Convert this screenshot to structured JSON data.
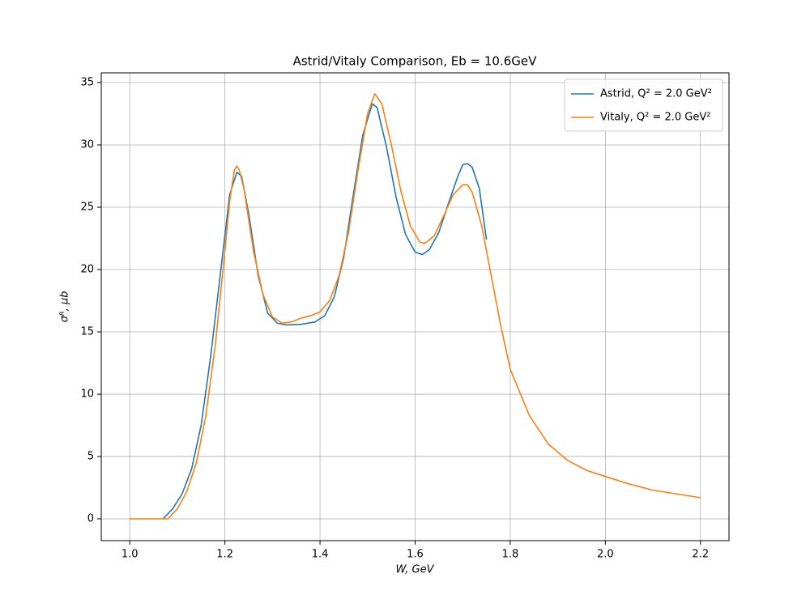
{
  "chart_data": {
    "type": "line",
    "title": "Astrid/Vitaly Comparison, Eb = 10.6GeV",
    "x_label": "W, GeV",
    "y_label": "σᴿ, μb",
    "xlim": [
      0.94,
      2.26
    ],
    "ylim": [
      -1.75,
      35.78
    ],
    "xticks": [
      {
        "value": 1.0,
        "label": "1.0"
      },
      1.2,
      1.4,
      1.6,
      1.8,
      {
        "value": 2.0,
        "label": "2.0"
      },
      2.2
    ],
    "yticks": [
      0,
      5,
      10,
      15,
      20,
      25,
      30,
      35
    ],
    "grid": true,
    "legend": "upper right",
    "series": [
      {
        "name": "Astrid, Q² = 2.0 GeV²",
        "color": "#1f77b4",
        "x": [
          1.07,
          1.09,
          1.11,
          1.13,
          1.15,
          1.17,
          1.19,
          1.21,
          1.225,
          1.235,
          1.25,
          1.27,
          1.29,
          1.31,
          1.33,
          1.36,
          1.39,
          1.41,
          1.43,
          1.45,
          1.47,
          1.49,
          1.51,
          1.52,
          1.54,
          1.56,
          1.58,
          1.6,
          1.615,
          1.63,
          1.65,
          1.67,
          1.69,
          1.7,
          1.71,
          1.72,
          1.735,
          1.75
        ],
        "values": [
          0,
          0.8,
          2.0,
          4.0,
          7.5,
          13,
          19.5,
          26,
          27.8,
          27.5,
          24.5,
          19.5,
          16.5,
          15.7,
          15.55,
          15.6,
          15.8,
          16.3,
          17.8,
          21.0,
          26.0,
          30.8,
          33.3,
          33.0,
          29.8,
          25.8,
          22.8,
          21.4,
          21.2,
          21.6,
          23.0,
          25.3,
          27.5,
          28.4,
          28.5,
          28.2,
          26.5,
          22.4
        ]
      },
      {
        "name": "Vitaly, Q² = 2.0 GeV²",
        "color": "#ff7f0e",
        "x": [
          1.0,
          1.08,
          1.1,
          1.12,
          1.14,
          1.16,
          1.18,
          1.2,
          1.21,
          1.22,
          1.225,
          1.23,
          1.24,
          1.26,
          1.28,
          1.3,
          1.32,
          1.34,
          1.36,
          1.38,
          1.4,
          1.42,
          1.44,
          1.46,
          1.48,
          1.5,
          1.515,
          1.53,
          1.55,
          1.57,
          1.59,
          1.61,
          1.62,
          1.64,
          1.66,
          1.68,
          1.7,
          1.71,
          1.72,
          1.74,
          1.76,
          1.78,
          1.8,
          1.84,
          1.88,
          1.92,
          1.96,
          2.0,
          2.05,
          2.1,
          2.15,
          2.2
        ],
        "values": [
          0,
          0,
          0.8,
          2.2,
          4.5,
          8.3,
          14,
          21.5,
          25.5,
          28.0,
          28.3,
          28.0,
          26.5,
          21.5,
          18.0,
          16.2,
          15.7,
          15.8,
          16.1,
          16.3,
          16.6,
          17.5,
          19.5,
          23.0,
          28.0,
          32.5,
          34.1,
          33.3,
          30.0,
          26.3,
          23.5,
          22.2,
          22.1,
          22.7,
          24.3,
          26.0,
          26.8,
          26.8,
          26.2,
          23.5,
          19.5,
          15.5,
          12.0,
          8.3,
          6.0,
          4.7,
          3.9,
          3.4,
          2.8,
          2.3,
          2.0,
          1.7
        ]
      }
    ]
  }
}
